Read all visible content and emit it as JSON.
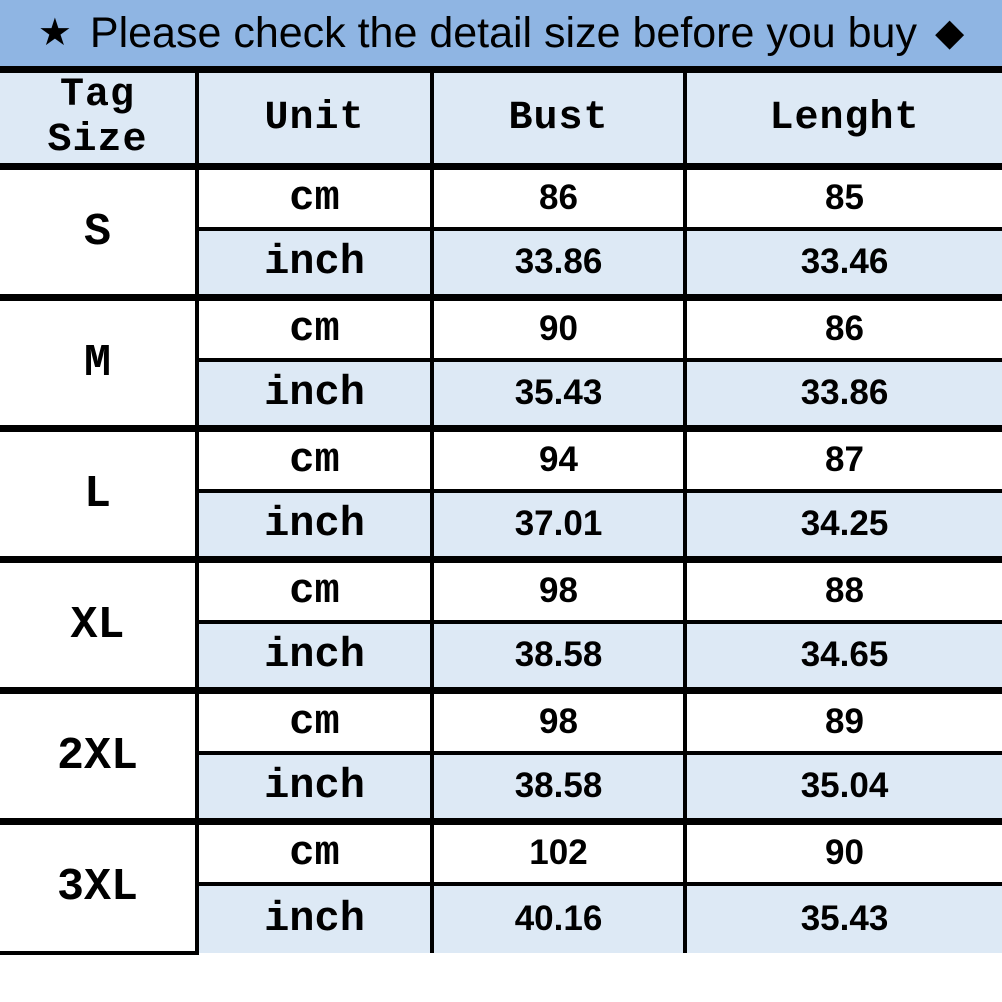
{
  "banner": {
    "star_icon": "★",
    "text": "Please check the detail size before you buy",
    "diamond_icon": "◆"
  },
  "table": {
    "headers": [
      "Tag Size",
      "Unit",
      "Bust",
      "Lenght"
    ],
    "units": [
      "cm",
      "inch"
    ],
    "sizes": [
      {
        "label": "S",
        "cm": {
          "bust": "86",
          "length": "85"
        },
        "inch": {
          "bust": "33.86",
          "length": "33.46"
        }
      },
      {
        "label": "M",
        "cm": {
          "bust": "90",
          "length": "86"
        },
        "inch": {
          "bust": "35.43",
          "length": "33.86"
        }
      },
      {
        "label": "L",
        "cm": {
          "bust": "94",
          "length": "87"
        },
        "inch": {
          "bust": "37.01",
          "length": "34.25"
        }
      },
      {
        "label": "XL",
        "cm": {
          "bust": "98",
          "length": "88"
        },
        "inch": {
          "bust": "38.58",
          "length": "34.65"
        }
      },
      {
        "label": "2XL",
        "cm": {
          "bust": "98",
          "length": "89"
        },
        "inch": {
          "bust": "38.58",
          "length": "35.04"
        }
      },
      {
        "label": "3XL",
        "cm": {
          "bust": "102",
          "length": "90"
        },
        "inch": {
          "bust": "40.16",
          "length": "35.43"
        }
      }
    ]
  },
  "colors": {
    "banner_bg": "#8fb5e3",
    "alt_row_bg": "#dde9f5",
    "row_bg": "#ffffff",
    "border": "#000000",
    "text": "#000000"
  }
}
